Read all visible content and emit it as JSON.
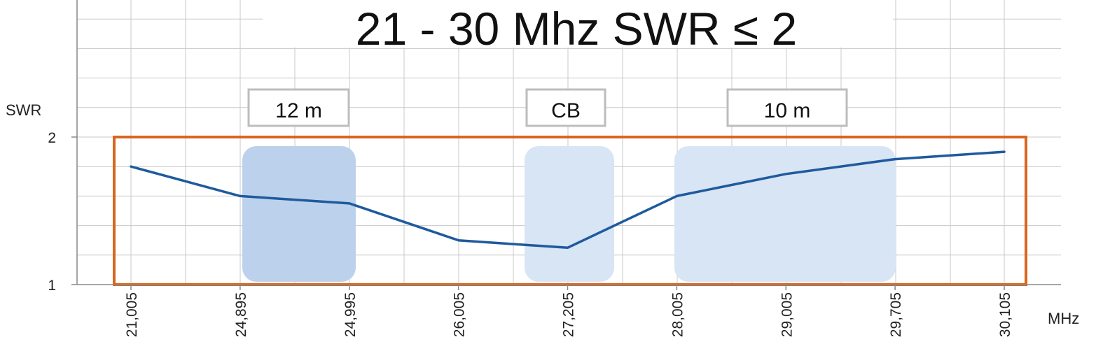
{
  "chart_data": {
    "type": "line",
    "title": "21 - 30 Mhz SWR ≤ 2",
    "ylabel": "SWR",
    "xlabel": "MHz",
    "categories": [
      "21,005",
      "24,895",
      "24,995",
      "26,005",
      "27,205",
      "28,005",
      "29,005",
      "29,705",
      "30,105"
    ],
    "yticks": [
      "1",
      "2"
    ],
    "ylim": [
      1,
      2.5
    ],
    "grid": true,
    "series": [
      {
        "values": [
          1.8,
          1.6,
          1.55,
          1.3,
          1.25,
          1.6,
          1.75,
          1.85,
          1.9
        ]
      }
    ],
    "bands": [
      {
        "label": "12 m",
        "from": "24,895",
        "to": "24,995"
      },
      {
        "label": "CB",
        "from": "26,005",
        "to": "27,205"
      },
      {
        "label": "10 m",
        "from": "28,005",
        "to": "29,705"
      }
    ],
    "threshold": {
      "value": 2,
      "label": "SWR ≤ 2"
    },
    "colors": {
      "line": "#1f5a9e",
      "threshold_box": "#d9661f",
      "band_dark": "#bcd2ec",
      "band_light": "#d8e5f5",
      "grid": "#c8c8c8",
      "label_box": "#bdbdbd"
    }
  }
}
